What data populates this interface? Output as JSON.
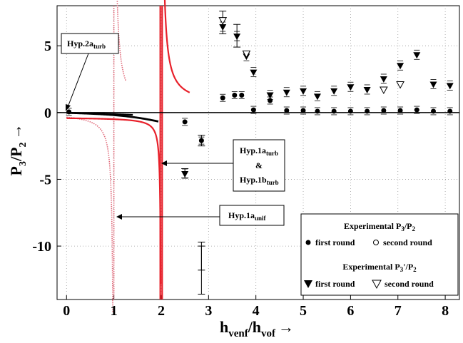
{
  "chart_data": {
    "type": "scatter",
    "xlabel": {
      "main": "h",
      "sub1": "venf",
      "mid": "/h",
      "sub2": "vof",
      "arrow": "→"
    },
    "ylabel": {
      "p1": "P",
      "s1": "3",
      "p2": "/P",
      "s2": "2",
      "arrow": "→"
    },
    "xlim": [
      -0.2,
      8.3
    ],
    "ylim": [
      -14,
      8
    ],
    "x_ticks": [
      0,
      1,
      2,
      3,
      4,
      5,
      6,
      7,
      8
    ],
    "y_ticks": [
      5,
      0,
      -5,
      -10
    ],
    "y_tick_labels": [
      "5",
      "0",
      "-5",
      "-10"
    ],
    "hline_y": 0,
    "series": [
      {
        "name": "Experimental P3/P2 first round",
        "marker": "filled-circle",
        "points": [
          [
            0.05,
            0.05
          ],
          [
            2.5,
            -0.7
          ],
          [
            2.85,
            -2.1
          ],
          [
            3.3,
            1.1
          ],
          [
            3.55,
            1.3
          ],
          [
            3.7,
            1.3
          ],
          [
            3.95,
            0.2
          ],
          [
            4.3,
            0.9
          ],
          [
            4.65,
            0.15
          ],
          [
            5.0,
            0.15
          ],
          [
            5.3,
            0.1
          ],
          [
            5.65,
            0.1
          ],
          [
            6.0,
            0.1
          ],
          [
            6.35,
            0.1
          ],
          [
            6.7,
            0.15
          ],
          [
            7.05,
            0.15
          ],
          [
            7.4,
            0.2
          ],
          [
            7.75,
            0.1
          ],
          [
            8.1,
            0.1
          ]
        ]
      },
      {
        "name": "Experimental P3'/P2 first round",
        "marker": "filled-triangle-down",
        "points": [
          [
            2.5,
            -4.6
          ],
          [
            3.3,
            6.4
          ],
          [
            3.6,
            5.7
          ],
          [
            3.8,
            4.2
          ],
          [
            3.95,
            3.0
          ],
          [
            4.3,
            1.3
          ],
          [
            4.65,
            1.5
          ],
          [
            5.0,
            1.6
          ],
          [
            5.3,
            1.2
          ],
          [
            5.65,
            1.6
          ],
          [
            6.0,
            1.9
          ],
          [
            6.35,
            1.7
          ],
          [
            6.7,
            2.5
          ],
          [
            7.05,
            3.5
          ],
          [
            7.4,
            4.3
          ],
          [
            7.75,
            2.1
          ],
          [
            8.1,
            2.0
          ]
        ]
      },
      {
        "name": "Experimental P3'/P2 second round",
        "marker": "open-triangle-down",
        "points": [
          [
            3.3,
            6.9
          ],
          [
            3.8,
            4.4
          ],
          [
            6.7,
            1.7
          ],
          [
            7.05,
            2.1
          ]
        ]
      }
    ],
    "error_bars": [
      {
        "x": 3.3,
        "low": 5.9,
        "high": 7.6
      },
      {
        "x": 3.6,
        "low": 4.9,
        "high": 6.6
      },
      {
        "x": 2.85,
        "low": -11.8,
        "high": -10.0
      },
      {
        "x": 2.85,
        "low": -13.6,
        "high": -9.7
      },
      {
        "x": 2.5,
        "low": -4.9,
        "high": -4.2
      },
      {
        "x": 2.85,
        "low": -2.5,
        "high": -1.7
      }
    ],
    "annotations": [
      {
        "id": "hyp2a",
        "main": "Hyp.2a",
        "sub": "turb"
      },
      {
        "id": "hyp1a_turb",
        "line1": "Hyp.1a",
        "sub1": "turb",
        "line2": "&",
        "line3": "Hyp.1b",
        "sub3": "turb"
      },
      {
        "id": "hyp1a_unif",
        "main": "Hyp.1a",
        "sub": "unif"
      }
    ],
    "legend": {
      "position": "bottom-right",
      "title1": {
        "pre": "Experimental P",
        "sub1": "3",
        "mid": "/P",
        "sub2": "2"
      },
      "title2": {
        "pre": "Experimental P",
        "sub1": "3",
        "mid": "'/P",
        "sub2": "2"
      },
      "first_round": "first round",
      "second_round": "second round"
    },
    "colors": {
      "hyp_turb_curve": "#e8202a",
      "hyp_unif_curve": "#e06878",
      "axis": "#000000"
    }
  }
}
